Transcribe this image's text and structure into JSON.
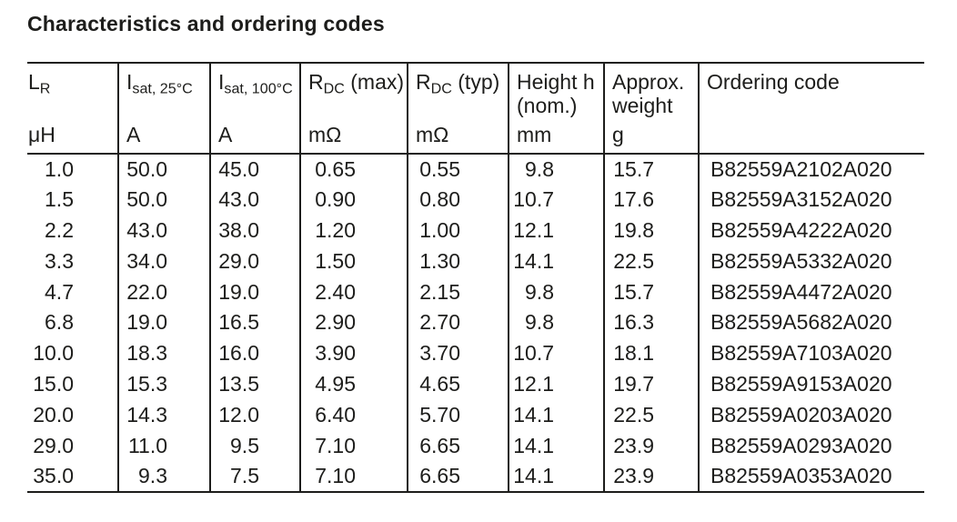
{
  "page": {
    "title": "Characteristics and ordering codes"
  },
  "colors": {
    "text": "#1d1d1b",
    "line": "#1d1d1b",
    "background": "#ffffff"
  },
  "table": {
    "column_keys": [
      "inductance",
      "isat_25c",
      "isat_100c",
      "rdc_max",
      "rdc_typ",
      "height",
      "weight",
      "ordering_code"
    ],
    "columns": [
      {
        "sym": "L",
        "sub": "R",
        "rest": "",
        "unit": "μH"
      },
      {
        "sym": "I",
        "sub": "sat, 25°C",
        "rest": "",
        "unit": "A"
      },
      {
        "sym": "I",
        "sub": "sat, 100°C",
        "rest": "",
        "unit": "A"
      },
      {
        "sym": "R",
        "sub": "DC",
        "rest": " (max)",
        "unit": "mΩ"
      },
      {
        "sym": "R",
        "sub": "DC",
        "rest": " (typ)",
        "unit": "mΩ"
      },
      {
        "line1": "Height h",
        "line2": "(nom.)",
        "unit": "mm"
      },
      {
        "line1": "Approx.",
        "line2": "weight",
        "unit": "g"
      },
      {
        "line1": "Ordering code",
        "line2": "",
        "unit": ""
      }
    ],
    "rows": [
      [
        "1.0",
        "50.0",
        "45.0",
        "0.65",
        "0.55",
        "9.8",
        "15.7",
        "B82559A2102A020"
      ],
      [
        "1.5",
        "50.0",
        "43.0",
        "0.90",
        "0.80",
        "10.7",
        "17.6",
        "B82559A3152A020"
      ],
      [
        "2.2",
        "43.0",
        "38.0",
        "1.20",
        "1.00",
        "12.1",
        "19.8",
        "B82559A4222A020"
      ],
      [
        "3.3",
        "34.0",
        "29.0",
        "1.50",
        "1.30",
        "14.1",
        "22.5",
        "B82559A5332A020"
      ],
      [
        "4.7",
        "22.0",
        "19.0",
        "2.40",
        "2.15",
        "9.8",
        "15.7",
        "B82559A4472A020"
      ],
      [
        "6.8",
        "19.0",
        "16.5",
        "2.90",
        "2.70",
        "9.8",
        "16.3",
        "B82559A5682A020"
      ],
      [
        "10.0",
        "18.3",
        "16.0",
        "3.90",
        "3.70",
        "10.7",
        "18.1",
        "B82559A7103A020"
      ],
      [
        "15.0",
        "15.3",
        "13.5",
        "4.95",
        "4.65",
        "12.1",
        "19.7",
        "B82559A9153A020"
      ],
      [
        "20.0",
        "14.3",
        "12.0",
        "6.40",
        "5.70",
        "14.1",
        "22.5",
        "B82559A0203A020"
      ],
      [
        "29.0",
        "11.0",
        "9.5",
        "7.10",
        "6.65",
        "14.1",
        "23.9",
        "B82559A0293A020"
      ],
      [
        "35.0",
        "9.3",
        "7.5",
        "7.10",
        "6.65",
        "14.1",
        "23.9",
        "B82559A0353A020"
      ]
    ]
  }
}
